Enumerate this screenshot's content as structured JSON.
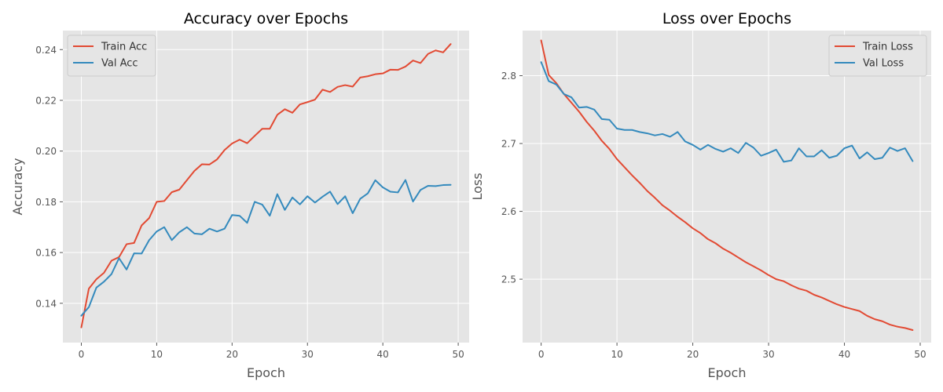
{
  "chart_data": [
    {
      "type": "line",
      "title": "Accuracy over Epochs",
      "xlabel": "Epoch",
      "ylabel": "Accuracy",
      "xlim": [
        -2.45,
        51.45
      ],
      "ylim": [
        0.1245,
        0.2475
      ],
      "xticks": [
        0,
        10,
        20,
        30,
        40,
        50
      ],
      "yticks": [
        0.14,
        0.16,
        0.18,
        0.2,
        0.22,
        0.24
      ],
      "ytick_decimals": 2,
      "grid": true,
      "legend_position": "upper-left",
      "x": [
        0,
        1,
        2,
        3,
        4,
        5,
        6,
        7,
        8,
        9,
        10,
        11,
        12,
        13,
        14,
        15,
        16,
        17,
        18,
        19,
        20,
        21,
        22,
        23,
        24,
        25,
        26,
        27,
        28,
        29,
        30,
        31,
        32,
        33,
        34,
        35,
        36,
        37,
        38,
        39,
        40,
        41,
        42,
        43,
        44,
        45,
        46,
        47,
        48,
        49
      ],
      "series": [
        {
          "name": "Train Acc",
          "color": "#e24a33",
          "values": [
            0.1305,
            0.1458,
            0.1495,
            0.152,
            0.1568,
            0.1582,
            0.1633,
            0.1638,
            0.1707,
            0.1736,
            0.18,
            0.1803,
            0.1838,
            0.1848,
            0.1885,
            0.1922,
            0.1948,
            0.1947,
            0.1967,
            0.2004,
            0.203,
            0.2045,
            0.2031,
            0.206,
            0.2088,
            0.2088,
            0.2143,
            0.2165,
            0.2151,
            0.2184,
            0.2193,
            0.2203,
            0.2242,
            0.2233,
            0.2253,
            0.226,
            0.2254,
            0.229,
            0.2295,
            0.2303,
            0.2306,
            0.2321,
            0.232,
            0.2333,
            0.2357,
            0.2347,
            0.2383,
            0.2397,
            0.2389,
            0.2422
          ]
        },
        {
          "name": "Val Acc",
          "color": "#348abd",
          "values": [
            0.1351,
            0.1385,
            0.1462,
            0.1485,
            0.1515,
            0.1578,
            0.1533,
            0.1597,
            0.1596,
            0.1649,
            0.1683,
            0.17,
            0.1649,
            0.168,
            0.17,
            0.1675,
            0.1672,
            0.1694,
            0.1683,
            0.1694,
            0.1748,
            0.1745,
            0.1717,
            0.18,
            0.1789,
            0.1745,
            0.183,
            0.1768,
            0.1817,
            0.179,
            0.1822,
            0.1797,
            0.182,
            0.184,
            0.1791,
            0.1822,
            0.1755,
            0.1812,
            0.1833,
            0.1885,
            0.1857,
            0.184,
            0.1837,
            0.1886,
            0.1801,
            0.1847,
            0.1863,
            0.1862,
            0.1866,
            0.1867
          ]
        }
      ]
    },
    {
      "type": "line",
      "title": "Loss over Epochs",
      "xlabel": "Epoch",
      "ylabel": "Loss",
      "xlim": [
        -2.45,
        51.45
      ],
      "ylim": [
        2.4065,
        2.8665
      ],
      "xticks": [
        0,
        10,
        20,
        30,
        40,
        50
      ],
      "yticks": [
        2.5,
        2.6,
        2.7,
        2.8
      ],
      "ytick_decimals": 1,
      "grid": true,
      "legend_position": "upper-right",
      "x": [
        0,
        1,
        2,
        3,
        4,
        5,
        6,
        7,
        8,
        9,
        10,
        11,
        12,
        13,
        14,
        15,
        16,
        17,
        18,
        19,
        20,
        21,
        22,
        23,
        24,
        25,
        26,
        27,
        28,
        29,
        30,
        31,
        32,
        33,
        34,
        35,
        36,
        37,
        38,
        39,
        40,
        41,
        42,
        43,
        44,
        45,
        46,
        47,
        48,
        49
      ],
      "series": [
        {
          "name": "Train Loss",
          "color": "#e24a33",
          "values": [
            2.852,
            2.801,
            2.789,
            2.773,
            2.76,
            2.747,
            2.732,
            2.719,
            2.704,
            2.692,
            2.677,
            2.665,
            2.653,
            2.642,
            2.63,
            2.62,
            2.609,
            2.601,
            2.592,
            2.584,
            2.575,
            2.568,
            2.559,
            2.553,
            2.545,
            2.539,
            2.532,
            2.525,
            2.519,
            2.513,
            2.506,
            2.5,
            2.497,
            2.491,
            2.486,
            2.483,
            2.477,
            2.473,
            2.468,
            2.463,
            2.459,
            2.456,
            2.453,
            2.446,
            2.441,
            2.438,
            2.433,
            2.43,
            2.428,
            2.425
          ]
        },
        {
          "name": "Val Loss",
          "color": "#348abd",
          "values": [
            2.82,
            2.792,
            2.787,
            2.773,
            2.768,
            2.753,
            2.754,
            2.75,
            2.736,
            2.735,
            2.722,
            2.72,
            2.72,
            2.717,
            2.715,
            2.712,
            2.714,
            2.71,
            2.717,
            2.703,
            2.698,
            2.691,
            2.698,
            2.692,
            2.688,
            2.693,
            2.686,
            2.701,
            2.694,
            2.682,
            2.686,
            2.691,
            2.673,
            2.675,
            2.693,
            2.681,
            2.681,
            2.69,
            2.679,
            2.682,
            2.693,
            2.697,
            2.678,
            2.687,
            2.677,
            2.679,
            2.694,
            2.689,
            2.693,
            2.674
          ]
        }
      ]
    }
  ]
}
